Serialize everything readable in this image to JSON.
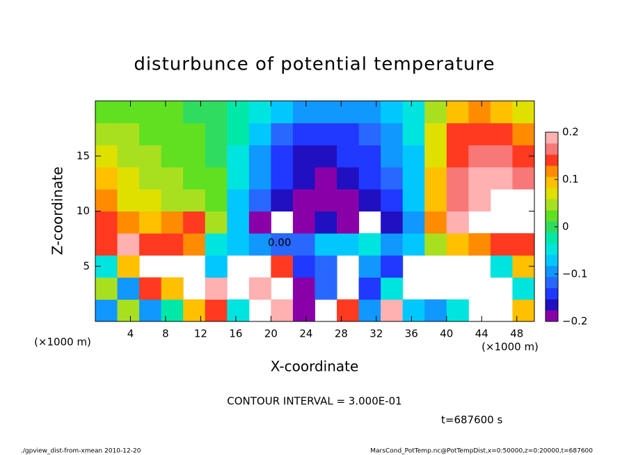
{
  "chart_data": {
    "type": "heatmap",
    "title": "disturbunce of potential temperature",
    "x_label": "X-coordinate",
    "y_label": "Z-coordinate",
    "x_unit": "(×1000 m)",
    "y_unit": "(×1000 m)",
    "xlim": [
      0,
      50
    ],
    "ylim": [
      0,
      20
    ],
    "xticks": [
      4,
      8,
      12,
      16,
      20,
      24,
      28,
      32,
      36,
      40,
      44,
      48
    ],
    "yticks": [
      5,
      10,
      15
    ],
    "clim": [
      -0.2,
      0.2
    ],
    "cticks": [
      {
        "value": -0.2,
        "label": "−0.2"
      },
      {
        "value": -0.1,
        "label": "−0.1"
      },
      0,
      0.1,
      0.2
    ],
    "colors": [
      "#8a00a8",
      "#2010c0",
      "#2038ff",
      "#2868ff",
      "#1098ff",
      "#00c8ff",
      "#00e4e0",
      "#00e8a8",
      "#30dc60",
      "#60e020",
      "#a8e020",
      "#e0e000",
      "#ffc000",
      "#ff8c00",
      "#ff3a20",
      "#f87878",
      "#ffb0b0"
    ],
    "x": [
      1.25,
      3.75,
      6.25,
      8.75,
      11.25,
      13.75,
      16.25,
      18.75,
      21.25,
      23.75,
      26.25,
      28.75,
      31.25,
      33.75,
      36.25,
      38.75,
      41.25,
      43.75,
      46.25,
      48.75
    ],
    "y": [
      1,
      3,
      5,
      7,
      9,
      11,
      13,
      15,
      17,
      19
    ],
    "z": [
      [
        -0.1,
        0.05,
        -0.1,
        -0.02,
        0.1,
        0.15,
        -0.05,
        null,
        0.18,
        -0.18,
        null,
        0.15,
        -0.1,
        0.2,
        -0.08,
        -0.1,
        -0.05,
        null,
        null,
        0.1
      ],
      [
        0.05,
        -0.1,
        0.15,
        0.1,
        null,
        0.18,
        null,
        0.2,
        null,
        -0.18,
        -0.12,
        null,
        -0.15,
        -0.05,
        null,
        null,
        null,
        null,
        null,
        -0.05
      ],
      [
        -0.05,
        0.1,
        null,
        null,
        null,
        -0.06,
        null,
        null,
        0.15,
        -0.15,
        -0.12,
        null,
        -0.1,
        -0.15,
        null,
        null,
        null,
        null,
        -0.05,
        0.1
      ],
      [
        0.15,
        0.18,
        0.15,
        0.15,
        0.12,
        -0.05,
        -0.06,
        -0.1,
        -0.12,
        -0.12,
        -0.08,
        -0.06,
        -0.05,
        -0.1,
        -0.08,
        0.05,
        0.1,
        0.12,
        0.15,
        0.15
      ],
      [
        0.14,
        0.12,
        0.1,
        0.12,
        0.15,
        0.05,
        -0.08,
        -0.18,
        null,
        -0.18,
        -0.17,
        -0.18,
        null,
        -0.17,
        -0.1,
        0.11,
        0.18,
        null,
        null,
        null
      ],
      [
        0.12,
        0.08,
        0.06,
        0.05,
        0.05,
        0.03,
        -0.06,
        -0.12,
        -0.16,
        -0.18,
        -0.19,
        -0.18,
        -0.17,
        -0.15,
        -0.08,
        0.1,
        0.17,
        0.2,
        null,
        null
      ],
      [
        0.1,
        0.06,
        0.04,
        0.04,
        0.03,
        0.02,
        -0.05,
        -0.1,
        -0.14,
        -0.17,
        -0.18,
        -0.17,
        -0.15,
        -0.12,
        -0.07,
        0.1,
        0.16,
        0.19,
        0.18,
        0.17
      ],
      [
        0.08,
        0.05,
        0.04,
        0.03,
        0.02,
        0.01,
        -0.04,
        -0.09,
        -0.13,
        -0.16,
        -0.16,
        -0.15,
        -0.14,
        -0.1,
        -0.06,
        0.08,
        0.15,
        0.17,
        0.16,
        0.14
      ],
      [
        0.05,
        0.04,
        0.03,
        0.02,
        0.02,
        0.0,
        -0.03,
        -0.07,
        -0.11,
        -0.13,
        -0.14,
        -0.13,
        -0.12,
        -0.09,
        -0.05,
        0.06,
        0.13,
        0.15,
        0.14,
        0.12
      ],
      [
        0.03,
        0.03,
        0.02,
        0.02,
        0.01,
        0.0,
        -0.02,
        -0.04,
        -0.07,
        -0.09,
        -0.1,
        -0.1,
        -0.09,
        -0.08,
        -0.05,
        0.05,
        0.1,
        0.12,
        0.1,
        0.08
      ]
    ],
    "contour_label": "0.00",
    "contour_interval": "CONTOUR INTERVAL = 3.000E-01",
    "time_label": "t=687600 s",
    "footer_left": "./gpview_dist-from-xmean  2010-12-20",
    "footer_right": "MarsCond_PotTemp.nc@PotTempDist,x=0:50000,z=0:20000,t=687600"
  }
}
